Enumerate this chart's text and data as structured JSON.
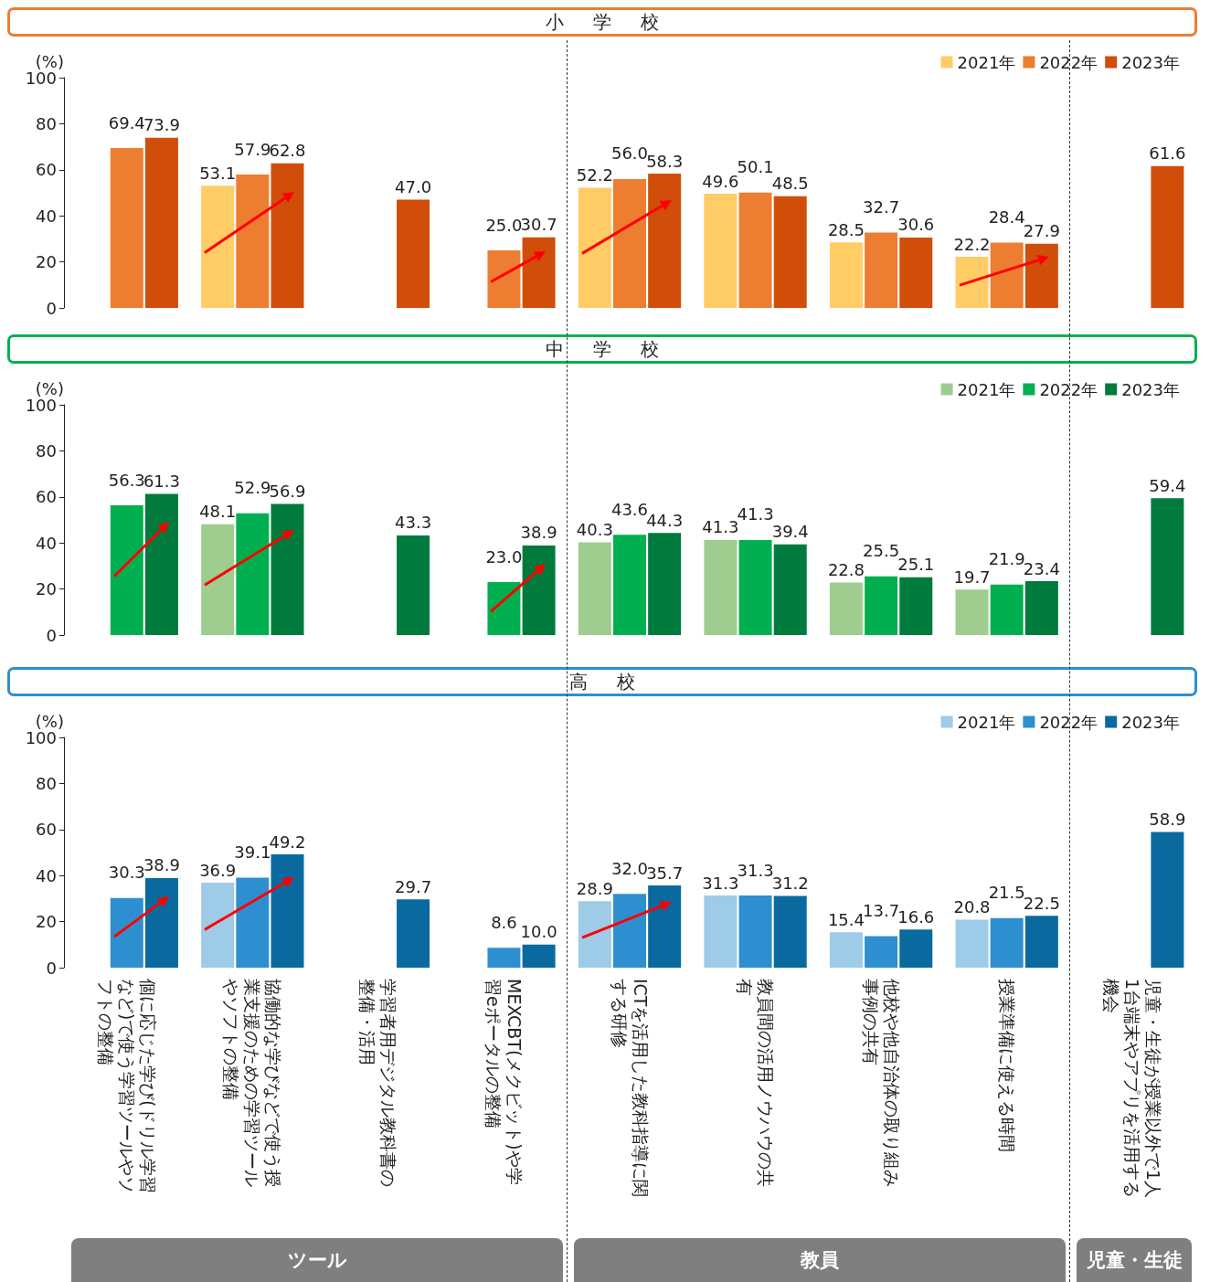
{
  "chart_data": [
    {
      "type": "bar",
      "title": "小学校",
      "ylabel": "(%)",
      "categories": [
        "個に応じた学び(ドリル学習など)で使う学習ツールやソフトの整備",
        "協働的な学びなどで使う授業支援のための学習ツールやソフトの整備",
        "学習者用デジタル教科書の整備・活用",
        "MEXCBT(メクビット)や学習eポータルの整備",
        "ICTを活用した教科指導に関する研修",
        "教員間の活用ノウハウの共有",
        "他校や他自治体の取り組み事例の共有",
        "授業準備に使える時間",
        "児童・生徒が授業以外で1人1台端末やアプリを活用する機会"
      ],
      "series": [
        {
          "name": "2021年",
          "color": "#ffcc66",
          "values": [
            null,
            53.1,
            null,
            null,
            52.2,
            49.6,
            28.5,
            22.2,
            null
          ],
          "value_labels": [
            null,
            "53.1",
            null,
            null,
            "52.2",
            "49.6",
            "28.5",
            "22.2",
            null
          ]
        },
        {
          "name": "2022年",
          "color": "#ed7d31",
          "values": [
            69.4,
            57.9,
            null,
            25.0,
            56.0,
            50.1,
            32.7,
            28.4,
            null
          ],
          "value_labels": [
            "69.4",
            "57.9",
            null,
            "25.0",
            "56.0",
            "50.1",
            "32.7",
            "28.4",
            null
          ]
        },
        {
          "name": "2023年",
          "color": "#d04e0a",
          "values": [
            73.9,
            62.8,
            47.0,
            30.7,
            58.3,
            48.5,
            30.6,
            27.9,
            61.6
          ],
          "value_labels": [
            "73.9",
            "62.8",
            "47.0",
            "30.7",
            "58.3",
            "48.5",
            "30.6",
            "27.9",
            "61.6"
          ]
        }
      ],
      "ylim": [
        0,
        100
      ],
      "yticks": [
        0,
        20,
        40,
        60,
        80,
        100
      ],
      "legend": "top right",
      "tick_labels": "y"
    },
    {
      "type": "bar",
      "title": "中学校",
      "ylabel": "(%)",
      "categories": [
        "個に応じた学び(ドリル学習など)で使う学習ツールやソフトの整備",
        "協働的な学びなどで使う授業支援のための学習ツールやソフトの整備",
        "学習者用デジタル教科書の整備・活用",
        "MEXCBT(メクビット)や学習eポータルの整備",
        "ICTを活用した教科指導に関する研修",
        "教員間の活用ノウハウの共有",
        "他校や他自治体の取り組み事例の共有",
        "授業準備に使える時間",
        "児童・生徒が授業以外で1人1台端末やアプリを活用する機会"
      ],
      "series": [
        {
          "name": "2021年",
          "color": "#9fcc8f",
          "values": [
            null,
            48.1,
            null,
            null,
            40.3,
            41.3,
            22.8,
            19.7,
            null
          ],
          "value_labels": [
            null,
            "48.1",
            null,
            null,
            "40.3",
            "41.3",
            "22.8",
            "19.7",
            null
          ]
        },
        {
          "name": "2022年",
          "color": "#00b050",
          "values": [
            56.3,
            52.9,
            null,
            23.0,
            43.6,
            41.3,
            25.5,
            21.9,
            null
          ],
          "value_labels": [
            "56.3",
            "52.9",
            null,
            "23.0",
            "43.6",
            "41.3",
            "25.5",
            "21.9",
            null
          ]
        },
        {
          "name": "2023年",
          "color": "#007a3d",
          "values": [
            61.3,
            56.9,
            43.3,
            38.9,
            44.3,
            39.4,
            25.1,
            23.4,
            59.4
          ],
          "value_labels": [
            "61.3",
            "56.9",
            "43.3",
            "38.9",
            "44.3",
            "39.4",
            "25.1",
            "23.4",
            "59.4"
          ]
        }
      ],
      "ylim": [
        0,
        100
      ],
      "yticks": [
        0,
        20,
        40,
        60,
        80,
        100
      ],
      "legend": "top right",
      "tick_labels": "y"
    },
    {
      "type": "bar",
      "title": "高校",
      "ylabel": "(%)",
      "categories": [
        "個に応じた学び(ドリル学習など)で使う学習ツールやソフトの整備",
        "協働的な学びなどで使う授業支援のための学習ツールやソフトの整備",
        "学習者用デジタル教科書の整備・活用",
        "MEXCBT(メクビット)や学習eポータルの整備",
        "ICTを活用した教科指導に関する研修",
        "教員間の活用ノウハウの共有",
        "他校や他自治体の取り組み事例の共有",
        "授業準備に使える時間",
        "児童・生徒が授業以外で1人1台端末やアプリを活用する機会"
      ],
      "series": [
        {
          "name": "2021年",
          "color": "#9dcbe8",
          "values": [
            null,
            36.9,
            null,
            null,
            28.9,
            31.3,
            15.4,
            20.8,
            null
          ],
          "value_labels": [
            null,
            "36.9",
            null,
            null,
            "28.9",
            "31.3",
            "15.4",
            "20.8",
            null
          ]
        },
        {
          "name": "2022年",
          "color": "#2e8fd0",
          "values": [
            30.3,
            39.1,
            null,
            8.6,
            32.0,
            31.3,
            13.7,
            21.5,
            null
          ],
          "value_labels": [
            "30.3",
            "39.1",
            null,
            "8.6",
            "32.0",
            "31.3",
            "13.7",
            "21.5",
            null
          ]
        },
        {
          "name": "2023年",
          "color": "#0a6aa0",
          "values": [
            38.9,
            49.2,
            29.7,
            10.0,
            35.7,
            31.2,
            16.6,
            22.5,
            58.9
          ],
          "value_labels": [
            "38.9",
            "49.2",
            "29.7",
            "10.0",
            "35.7",
            "31.2",
            "16.6",
            "22.5",
            "58.9"
          ]
        }
      ],
      "ylim": [
        0,
        100
      ],
      "yticks": [
        0,
        20,
        40,
        60,
        80,
        100
      ],
      "legend": "top right",
      "annotations": [
        "ツール",
        "教員",
        "児童・生徒"
      ]
    }
  ]
}
